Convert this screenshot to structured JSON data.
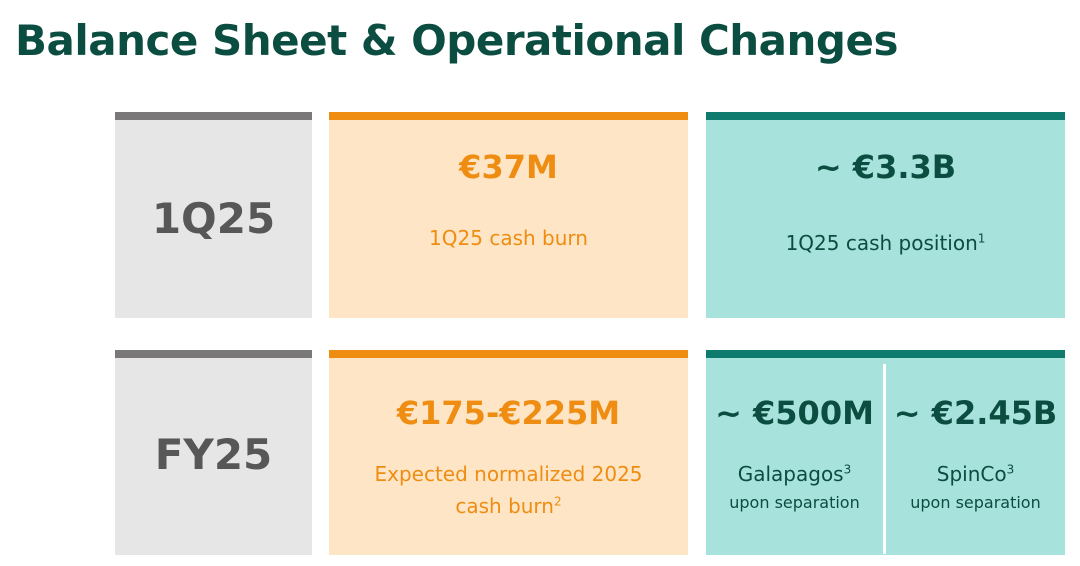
{
  "header": {
    "title": "Balance Sheet & Operational Changes"
  },
  "rows": [
    {
      "period": "1Q25",
      "cash_burn": {
        "value": "€37M",
        "label": "1Q25 cash burn"
      },
      "cash_position": {
        "value": "~ €3.3B",
        "label": "1Q25 cash position",
        "footnote": "1"
      }
    },
    {
      "period": "FY25",
      "cash_burn": {
        "value": "€175-€225M",
        "label_line1": "Expected normalized 2025",
        "label_line2": "cash burn",
        "footnote": "2"
      },
      "split": [
        {
          "value": "~ €500M",
          "name": "Galapagos",
          "footnote": "3",
          "note": "upon separation"
        },
        {
          "value": "~ €2.45B",
          "name": "SpinCo",
          "footnote": "3",
          "note": "upon separation"
        }
      ]
    }
  ]
}
